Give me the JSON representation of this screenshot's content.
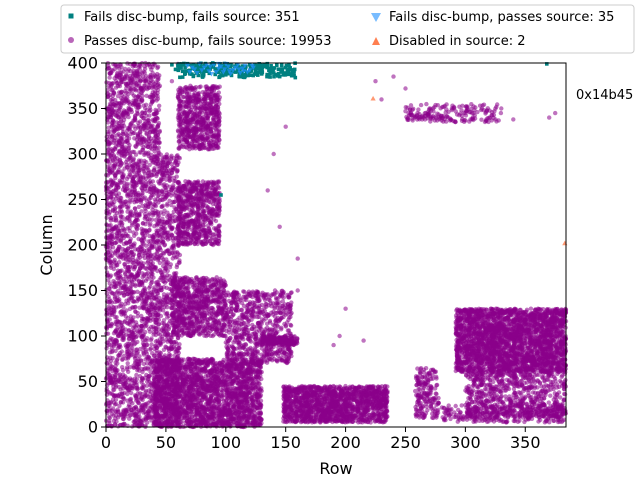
{
  "chart_data": {
    "type": "scatter",
    "title": "",
    "xlabel": "Row",
    "ylabel": "Column",
    "xlim": [
      0,
      384
    ],
    "ylim": [
      0,
      400
    ],
    "xticks": [
      0,
      50,
      100,
      150,
      200,
      250,
      300,
      350
    ],
    "yticks": [
      0,
      50,
      100,
      150,
      200,
      250,
      300,
      350,
      400
    ],
    "annotation": "0x14b45",
    "legend_position": "top",
    "series": [
      {
        "name": "Fails disc-bump, fails source",
        "count": 351,
        "label": "Fails disc-bump, fails source: 351",
        "marker": "square",
        "color": "#008080",
        "points": [
          [
            55,
            398
          ],
          [
            58,
            393
          ],
          [
            60,
            397
          ],
          [
            63,
            399
          ],
          [
            66,
            395
          ],
          [
            70,
            392
          ],
          [
            73,
            398
          ],
          [
            77,
            396
          ],
          [
            80,
            390
          ],
          [
            84,
            394
          ],
          [
            88,
            399
          ],
          [
            92,
            392
          ],
          [
            96,
            397
          ],
          [
            100,
            393
          ],
          [
            104,
            398
          ],
          [
            108,
            390
          ],
          [
            112,
            395
          ],
          [
            116,
            392
          ],
          [
            120,
            398
          ],
          [
            124,
            394
          ],
          [
            128,
            390
          ],
          [
            132,
            396
          ],
          [
            136,
            392
          ],
          [
            140,
            389
          ],
          [
            144,
            393
          ],
          [
            148,
            387
          ],
          [
            152,
            391
          ],
          [
            155,
            386
          ],
          [
            158,
            384
          ],
          [
            145,
            385
          ],
          [
            130,
            388
          ],
          [
            118,
            389
          ],
          [
            100,
            387
          ],
          [
            96,
            255
          ],
          [
            368,
            399
          ]
        ],
        "clusters": [
          [
            60,
            158,
            384,
            400,
            220
          ]
        ]
      },
      {
        "name": "Passes disc-bump, fails source",
        "count": 19953,
        "label": "Passes disc-bump, fails source: 19953",
        "marker": "circle",
        "color": "#8b008b",
        "points": [
          [
            60,
            399
          ],
          [
            72,
            398
          ],
          [
            55,
            380
          ],
          [
            150,
            330
          ],
          [
            140,
            300
          ],
          [
            135,
            260
          ],
          [
            145,
            220
          ],
          [
            160,
            185
          ],
          [
            160,
            150
          ],
          [
            290,
            350
          ],
          [
            300,
            345
          ],
          [
            320,
            340
          ],
          [
            330,
            350
          ],
          [
            370,
            340
          ],
          [
            375,
            345
          ],
          [
            260,
            345
          ],
          [
            265,
            340
          ],
          [
            225,
            380
          ],
          [
            230,
            360
          ],
          [
            240,
            385
          ],
          [
            250,
            372
          ],
          [
            270,
            345
          ],
          [
            280,
            342
          ],
          [
            295,
            352
          ],
          [
            310,
            346
          ],
          [
            340,
            338
          ],
          [
            200,
            130
          ],
          [
            190,
            90
          ],
          [
            195,
            100
          ],
          [
            215,
            95
          ]
        ],
        "clusters": [
          [
            0,
            45,
            0,
            400,
            2600
          ],
          [
            45,
            62,
            0,
            300,
            700
          ],
          [
            60,
            95,
            305,
            375,
            650
          ],
          [
            60,
            95,
            200,
            270,
            650
          ],
          [
            55,
            100,
            100,
            165,
            750
          ],
          [
            40,
            130,
            0,
            75,
            2300
          ],
          [
            100,
            155,
            70,
            150,
            700
          ],
          [
            130,
            160,
            90,
            100,
            150
          ],
          [
            250,
            330,
            335,
            355,
            180
          ],
          [
            148,
            235,
            5,
            45,
            1500
          ],
          [
            258,
            278,
            10,
            65,
            180
          ],
          [
            292,
            384,
            60,
            130,
            2700
          ],
          [
            300,
            384,
            10,
            60,
            700
          ],
          [
            280,
            384,
            5,
            25,
            250
          ]
        ]
      },
      {
        "name": "Fails disc-bump, passes source",
        "count": 35,
        "label": "Fails disc-bump, passes source: 35",
        "marker": "triangle-down",
        "color": "#1e90ff",
        "points": [
          [
            68,
            397
          ],
          [
            74,
            393
          ],
          [
            78,
            399
          ],
          [
            82,
            395
          ],
          [
            86,
            391
          ],
          [
            90,
            398
          ],
          [
            94,
            394
          ],
          [
            98,
            390
          ],
          [
            102,
            396
          ],
          [
            106,
            392
          ],
          [
            110,
            398
          ],
          [
            114,
            394
          ],
          [
            118,
            390
          ],
          [
            122,
            397
          ],
          [
            76,
            389
          ],
          [
            88,
            388
          ],
          [
            100,
            399
          ],
          [
            112,
            389
          ],
          [
            94,
            399
          ],
          [
            104,
            388
          ],
          [
            84,
            398
          ],
          [
            92,
            390
          ],
          [
            108,
            395
          ],
          [
            116,
            397
          ],
          [
            120,
            392
          ],
          [
            72,
            395
          ],
          [
            80,
            392
          ],
          [
            96,
            396
          ],
          [
            103,
            391
          ],
          [
            111,
            393
          ],
          [
            87,
            396
          ],
          [
            99,
            393
          ],
          [
            115,
            391
          ],
          [
            70,
            390
          ],
          [
            123,
            395
          ]
        ]
      },
      {
        "name": "Disabled in source",
        "count": 2,
        "label": "Disabled in source: 2",
        "marker": "triangle-up",
        "color": "#ff7f50",
        "points": [
          [
            223,
            361
          ],
          [
            383,
            202
          ]
        ]
      }
    ]
  }
}
